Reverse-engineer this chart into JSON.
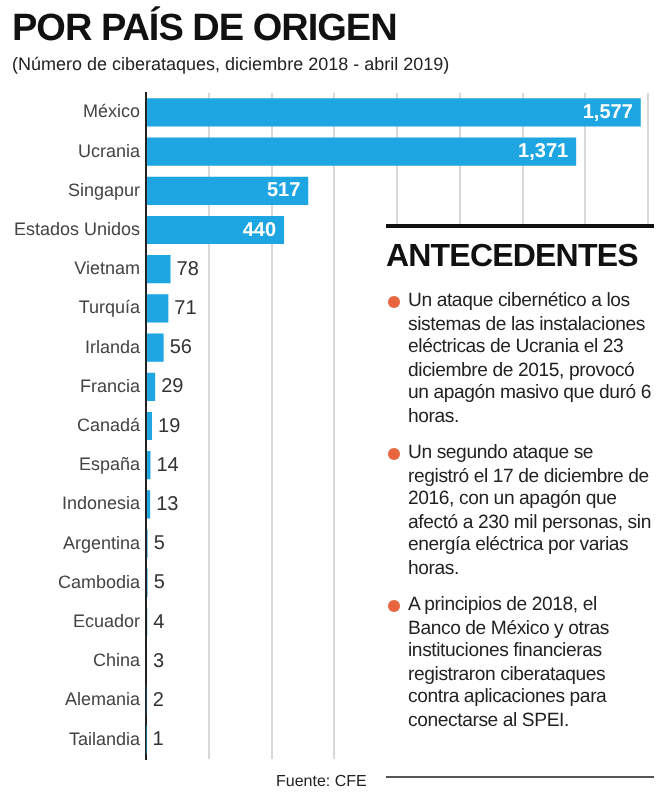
{
  "chart_data": {
    "type": "bar",
    "orientation": "horizontal",
    "title": "POR PAÍS DE ORIGEN",
    "subtitle": "(Número de ciberataques, diciembre 2018 - abril 2019)",
    "categories": [
      "México",
      "Ucrania",
      "Singapur",
      "Estados Unidos",
      "Vietnam",
      "Turquía",
      "Irlanda",
      "Francia",
      "Canadá",
      "España",
      "Indonesia",
      "Argentina",
      "Cambodia",
      "Ecuador",
      "China",
      "Alemania",
      "Tailandia"
    ],
    "values": [
      1577,
      1371,
      517,
      440,
      78,
      71,
      56,
      29,
      19,
      14,
      13,
      5,
      5,
      4,
      3,
      2,
      1
    ],
    "value_labels": [
      "1,577",
      "1,371",
      "517",
      "440",
      "78",
      "71",
      "56",
      "29",
      "19",
      "14",
      "13",
      "5",
      "5",
      "4",
      "3",
      "2",
      "1"
    ],
    "color": "#1ea6e2",
    "xlim": [
      0,
      1600
    ],
    "xticks": [
      {
        "value": 0,
        "label": null
      },
      {
        "value": 200,
        "label": null
      },
      {
        "value": 400,
        "label": null
      },
      {
        "value": 600,
        "label": null
      },
      {
        "value": 800,
        "label": null
      },
      {
        "value": 1000,
        "label": null
      },
      {
        "value": 1200,
        "label": null
      },
      {
        "value": 1400,
        "label": null
      },
      {
        "value": 1600,
        "label": null
      }
    ],
    "grid": "x",
    "tick_labels": "y",
    "annotations": [
      "ANTECEDENTES",
      "Un ataque cibernético a los sistemas de las instalaciones eléctricas de Ucrania el 23 diciembre de 2015, provocó un apagón masivo que duró 6 horas.",
      "Un segundo ataque se registró el 17 de diciembre de 2016, con un apagón que afectó a 230 mil personas, sin energía eléctrica por varias horas.",
      "A principios de 2018, el Banco de México y otras instituciones financieras registraron ciberataques contra aplicaciones para conectarse al SPEI.",
      "Fuente: CFE"
    ]
  }
}
